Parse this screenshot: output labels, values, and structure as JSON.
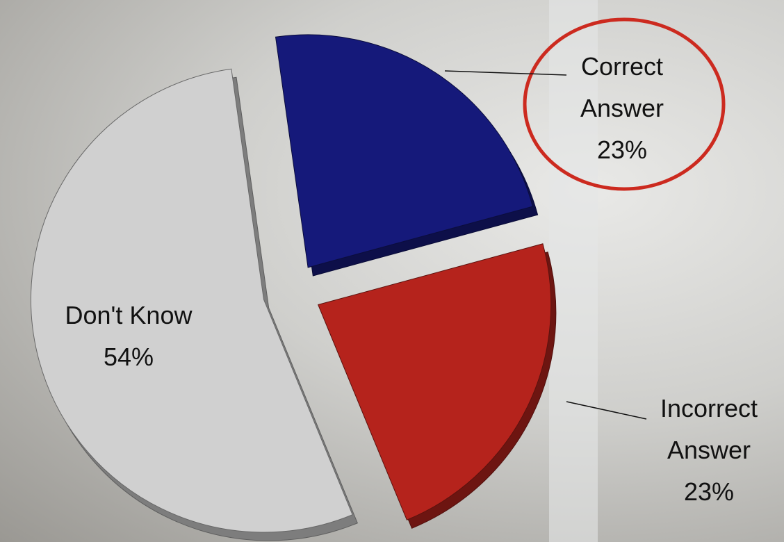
{
  "chart_data": {
    "type": "pie",
    "categories": [
      "Correct Answer",
      "Incorrect Answer",
      "Don't Know"
    ],
    "values": [
      23,
      23,
      54
    ],
    "value_labels": [
      "23%",
      "23%",
      "54%"
    ],
    "colors": [
      "#15197a",
      "#b5231c",
      "#d0d0d0"
    ]
  }
}
